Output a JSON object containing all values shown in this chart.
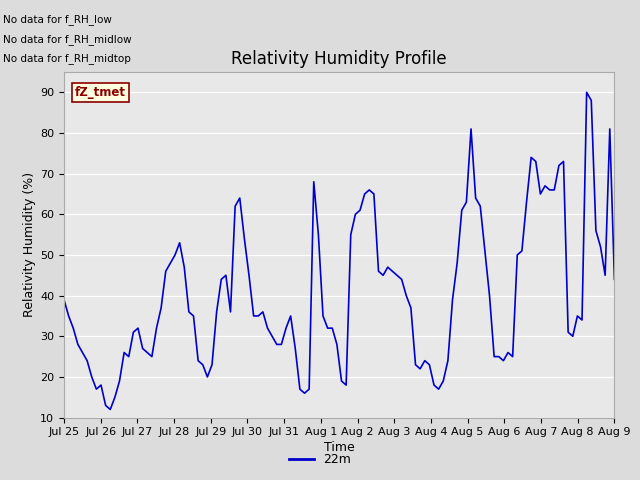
{
  "title": "Relativity Humidity Profile",
  "xlabel": "Time",
  "ylabel": "Relativity Humidity (%)",
  "ylim": [
    10,
    95
  ],
  "yticks": [
    10,
    20,
    30,
    40,
    50,
    60,
    70,
    80,
    90
  ],
  "line_color": "#0000CC",
  "line_width": 1.2,
  "bg_color": "#E0E0E0",
  "plot_bg_color": "#E8E8E8",
  "legend_label": "22m",
  "no_data_texts": [
    "No data for f_RH_low",
    "No data for f_RH_midlow",
    "No data for f_RH_midtop"
  ],
  "annotation_text": "fZ_tmet",
  "x_tick_labels": [
    "Jul 25",
    "Jul 26",
    "Jul 27",
    "Jul 28",
    "Jul 29",
    "Jul 30",
    "Jul 31",
    "Aug 1",
    "Aug 2",
    "Aug 3",
    "Aug 4",
    "Aug 5",
    "Aug 6",
    "Aug 7",
    "Aug 8",
    "Aug 9"
  ],
  "rh_values": [
    39,
    35,
    32,
    28,
    26,
    24,
    20,
    17,
    18,
    13,
    12,
    15,
    19,
    26,
    25,
    31,
    32,
    27,
    26,
    25,
    32,
    37,
    46,
    48,
    50,
    53,
    47,
    36,
    35,
    24,
    23,
    20,
    23,
    36,
    44,
    45,
    36,
    62,
    64,
    54,
    45,
    35,
    35,
    36,
    32,
    30,
    28,
    28,
    32,
    35,
    27,
    17,
    16,
    17,
    68,
    55,
    35,
    32,
    32,
    28,
    19,
    18,
    55,
    60,
    61,
    65,
    66,
    65,
    46,
    45,
    47,
    46,
    45,
    44,
    40,
    37,
    23,
    22,
    24,
    23,
    18,
    17,
    19,
    24,
    39,
    48,
    61,
    63,
    81,
    64,
    62,
    51,
    40,
    25,
    25,
    24,
    26,
    25,
    50,
    51,
    63,
    74,
    73,
    65,
    67,
    66,
    66,
    72,
    73,
    31,
    30,
    35,
    34,
    90,
    88,
    56,
    52,
    45,
    81,
    44
  ]
}
